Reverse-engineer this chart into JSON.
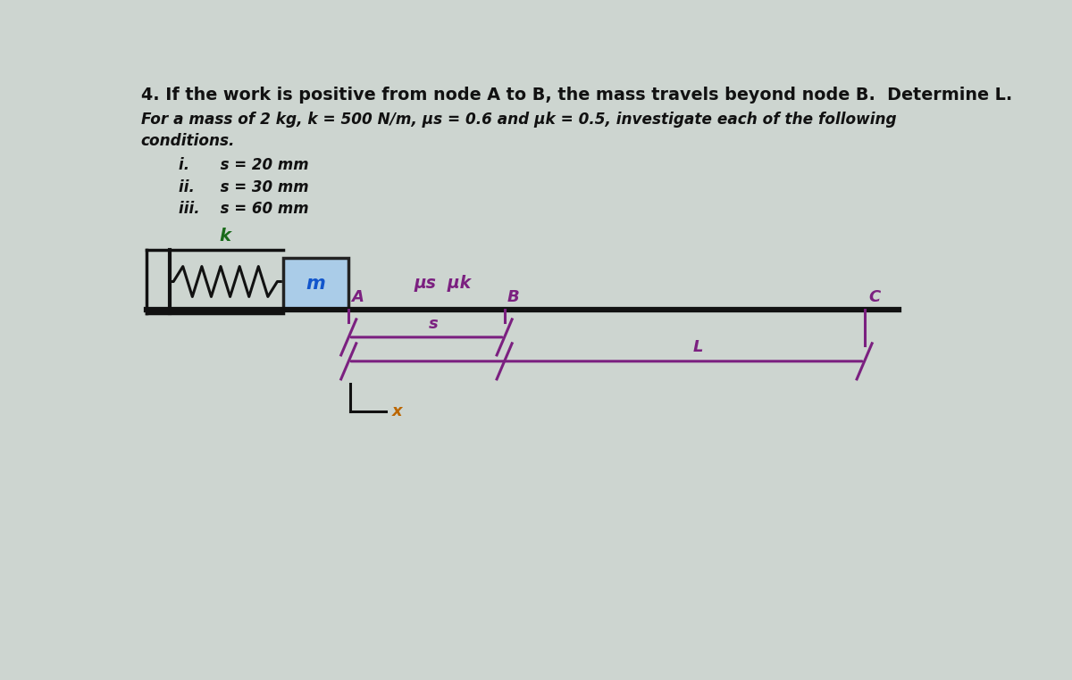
{
  "background_color": "#cdd5d0",
  "title_line1": "4. If the work is positive from node A to B, the mass travels beyond node B.  Determine L.",
  "para_line1": "For a mass of 2 kg, k = 500 N/m, μs = 0.6 and μk = 0.5, investigate each of the following",
  "para_line2": "conditions.",
  "items": [
    "i.      s = 20 mm",
    "ii.     s = 30 mm",
    "iii.    s = 60 mm"
  ],
  "label_k": "k",
  "label_m": "m",
  "label_mu": "μs  μk",
  "label_A": "A",
  "label_B": "B",
  "label_C": "C",
  "label_s": "s",
  "label_L": "L",
  "label_x": "x",
  "purple": "#7B2080",
  "blue_box": "#aacce8",
  "blue_box_border": "#222222",
  "black": "#111111",
  "dark_green": "#1a6b1a",
  "blue_m": "#1155cc",
  "orange_x": "#bb6600",
  "text_color": "#111111",
  "fig_width": 12.0,
  "fig_height": 7.62
}
